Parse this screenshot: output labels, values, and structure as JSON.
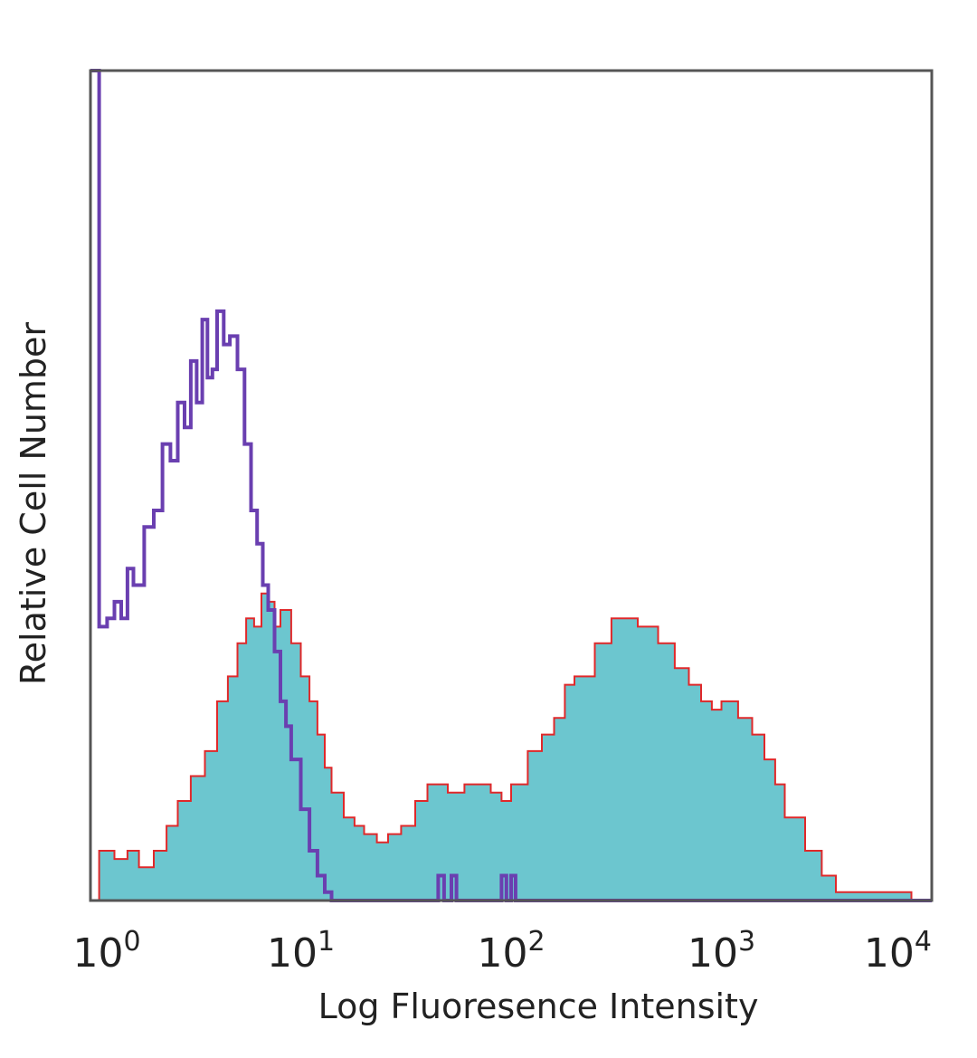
{
  "chart_data": {
    "type": "area",
    "xlabel": "Log Fluoresence Intensity",
    "ylabel": "Relative Cell Number",
    "xscale": "log",
    "xlim": [
      1,
      10000
    ],
    "ylim": [
      0,
      100
    ],
    "grid": false,
    "x_ticks": [
      {
        "base": "10",
        "exp": "0",
        "value": 1
      },
      {
        "base": "10",
        "exp": "1",
        "value": 10
      },
      {
        "base": "10",
        "exp": "2",
        "value": 100
      },
      {
        "base": "10",
        "exp": "3",
        "value": 1000
      },
      {
        "base": "10",
        "exp": "4",
        "value": 10000
      }
    ],
    "series": [
      {
        "style": "filled",
        "fill_color": "#6cc6cf",
        "line_color": "#e0282a",
        "x": [
          1.0,
          1.1,
          1.3,
          1.5,
          1.7,
          2.0,
          2.3,
          2.6,
          3.0,
          3.5,
          4.0,
          4.5,
          5.0,
          5.5,
          6.0,
          6.5,
          7.0,
          7.5,
          8.0,
          9.0,
          10.0,
          11.0,
          12.0,
          13.0,
          14.0,
          16.0,
          18.0,
          20.0,
          23.0,
          26.0,
          30.0,
          35.0,
          40.0,
          45.0,
          50.0,
          60.0,
          70.0,
          80.0,
          90.0,
          100.0,
          120.0,
          140.0,
          160.0,
          180.0,
          200.0,
          250.0,
          300.0,
          350.0,
          400.0,
          450.0,
          500.0,
          600.0,
          700.0,
          800.0,
          900.0,
          1000.0,
          1200.0,
          1400.0,
          1600.0,
          1800.0,
          2000.0,
          2500.0,
          3000.0,
          3500.0,
          4000.0,
          5000.0,
          6000.0,
          7000.0,
          8000.0,
          10000.0
        ],
        "values": [
          0,
          6,
          5,
          6,
          4,
          6,
          9,
          12,
          15,
          18,
          24,
          27,
          31,
          34,
          33,
          37,
          36,
          33,
          35,
          31,
          27,
          24,
          20,
          16,
          13,
          10,
          9,
          8,
          7,
          8,
          9,
          12,
          14,
          14,
          13,
          14,
          14,
          13,
          12,
          14,
          18,
          20,
          22,
          26,
          27,
          31,
          34,
          34,
          33,
          33,
          31,
          28,
          26,
          24,
          23,
          24,
          22,
          20,
          17,
          14,
          10,
          6,
          3,
          1,
          1,
          1,
          1,
          1,
          0,
          0
        ]
      },
      {
        "style": "line",
        "line_color": "#6a3fb0",
        "x": [
          1.0,
          1.1,
          1.2,
          1.3,
          1.4,
          1.5,
          1.6,
          1.8,
          2.0,
          2.2,
          2.4,
          2.6,
          2.8,
          3.0,
          3.2,
          3.4,
          3.6,
          3.8,
          4.0,
          4.3,
          4.6,
          5.0,
          5.4,
          5.8,
          6.2,
          6.6,
          7.0,
          7.5,
          8.0,
          8.5,
          9.0,
          10.0,
          11.0,
          12.0,
          13.0,
          14.0,
          15.0,
          20.0,
          40.0,
          45.0,
          48.0,
          52.0,
          55.0,
          60.0,
          80.0,
          90.0,
          95.0,
          100.0,
          105.0,
          110.0,
          120.0,
          10000.0
        ],
        "values": [
          100,
          33,
          34,
          36,
          34,
          40,
          38,
          45,
          47,
          55,
          53,
          60,
          57,
          65,
          60,
          70,
          63,
          64,
          71,
          67,
          68,
          64,
          55,
          47,
          43,
          38,
          35,
          30,
          24,
          21,
          17,
          11,
          6,
          3,
          1,
          0,
          0,
          0,
          0,
          3,
          0,
          3,
          0,
          0,
          0,
          3,
          0,
          3,
          0,
          0,
          0,
          0
        ]
      }
    ]
  }
}
